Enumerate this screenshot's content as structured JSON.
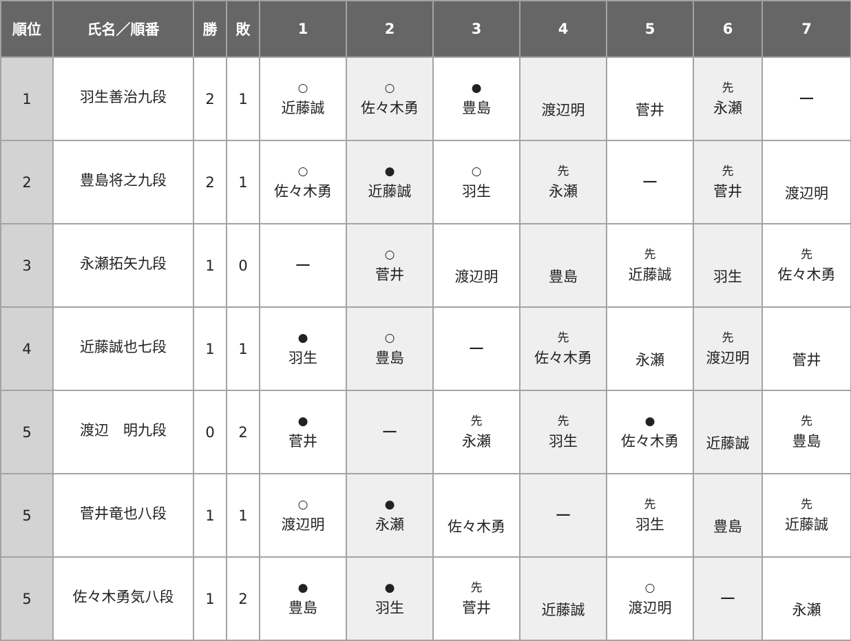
{
  "header": [
    "順位",
    "氏名／順番",
    "勝",
    "敗",
    "1",
    "2",
    "3",
    "4",
    "5",
    "6",
    "7"
  ],
  "colors": {
    "header_bg": "#666666",
    "rank_bg": "#d3d3d3",
    "alt_col_bg": "#efefef",
    "border": "#a3a3a3"
  },
  "rows": [
    {
      "rank": "1",
      "name": "羽生善治九段",
      "win": "2",
      "loss": "1",
      "games": [
        {
          "mark": "○",
          "opp": "近藤誠"
        },
        {
          "mark": "○",
          "opp": "佐々木勇"
        },
        {
          "mark": "●",
          "opp": "豊島"
        },
        {
          "mark": "",
          "opp": "渡辺明"
        },
        {
          "mark": "",
          "opp": "菅井"
        },
        {
          "mark": "先",
          "opp": "永瀬"
        },
        {
          "mark": "",
          "opp": "ー"
        }
      ]
    },
    {
      "rank": "2",
      "name": "豊島将之九段",
      "win": "2",
      "loss": "1",
      "games": [
        {
          "mark": "○",
          "opp": "佐々木勇"
        },
        {
          "mark": "●",
          "opp": "近藤誠"
        },
        {
          "mark": "○",
          "opp": "羽生"
        },
        {
          "mark": "先",
          "opp": "永瀬"
        },
        {
          "mark": "",
          "opp": "ー"
        },
        {
          "mark": "先",
          "opp": "菅井"
        },
        {
          "mark": "",
          "opp": "渡辺明"
        }
      ]
    },
    {
      "rank": "3",
      "name": "永瀬拓矢九段",
      "win": "1",
      "loss": "0",
      "games": [
        {
          "mark": "",
          "opp": "ー"
        },
        {
          "mark": "○",
          "opp": "菅井"
        },
        {
          "mark": "",
          "opp": "渡辺明"
        },
        {
          "mark": "",
          "opp": "豊島"
        },
        {
          "mark": "先",
          "opp": "近藤誠"
        },
        {
          "mark": "",
          "opp": "羽生"
        },
        {
          "mark": "先",
          "opp": "佐々木勇"
        }
      ]
    },
    {
      "rank": "4",
      "name": "近藤誠也七段",
      "win": "1",
      "loss": "1",
      "games": [
        {
          "mark": "●",
          "opp": "羽生"
        },
        {
          "mark": "○",
          "opp": "豊島"
        },
        {
          "mark": "",
          "opp": "ー"
        },
        {
          "mark": "先",
          "opp": "佐々木勇"
        },
        {
          "mark": "",
          "opp": "永瀬"
        },
        {
          "mark": "先",
          "opp": "渡辺明"
        },
        {
          "mark": "",
          "opp": "菅井"
        }
      ]
    },
    {
      "rank": "5",
      "name": "渡辺　明九段",
      "win": "0",
      "loss": "2",
      "games": [
        {
          "mark": "●",
          "opp": "菅井"
        },
        {
          "mark": "",
          "opp": "ー"
        },
        {
          "mark": "先",
          "opp": "永瀬"
        },
        {
          "mark": "先",
          "opp": "羽生"
        },
        {
          "mark": "●",
          "opp": "佐々木勇"
        },
        {
          "mark": "",
          "opp": "近藤誠"
        },
        {
          "mark": "先",
          "opp": "豊島"
        }
      ]
    },
    {
      "rank": "5",
      "name": "菅井竜也八段",
      "win": "1",
      "loss": "1",
      "games": [
        {
          "mark": "○",
          "opp": "渡辺明"
        },
        {
          "mark": "●",
          "opp": "永瀬"
        },
        {
          "mark": "",
          "opp": "佐々木勇"
        },
        {
          "mark": "",
          "opp": "ー"
        },
        {
          "mark": "先",
          "opp": "羽生"
        },
        {
          "mark": "",
          "opp": "豊島"
        },
        {
          "mark": "先",
          "opp": "近藤誠"
        }
      ]
    },
    {
      "rank": "5",
      "name": "佐々木勇気八段",
      "win": "1",
      "loss": "2",
      "games": [
        {
          "mark": "●",
          "opp": "豊島"
        },
        {
          "mark": "●",
          "opp": "羽生"
        },
        {
          "mark": "先",
          "opp": "菅井"
        },
        {
          "mark": "",
          "opp": "近藤誠"
        },
        {
          "mark": "○",
          "opp": "渡辺明"
        },
        {
          "mark": "",
          "opp": "ー"
        },
        {
          "mark": "",
          "opp": "永瀬"
        }
      ]
    }
  ]
}
